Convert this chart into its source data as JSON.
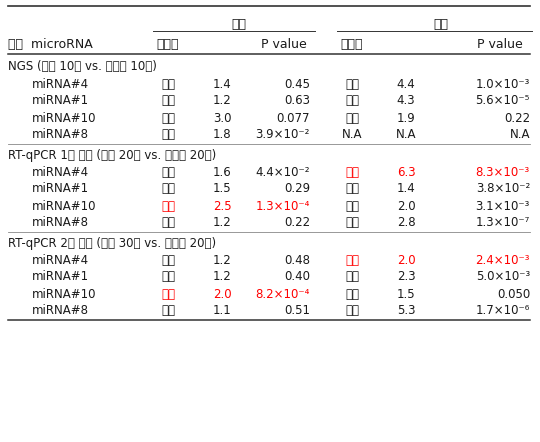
{
  "sections": [
    {
      "section_label": "NGS (피로 10명 vs. 건강인 10명)",
      "rows": [
        {
          "mirna": "miRNA#4",
          "f_dir": "증가",
          "f_dir_red": false,
          "f_val": "1.4",
          "f_val_red": false,
          "f_pval": "0.45",
          "f_pval_red": false,
          "m_dir": "증가",
          "m_dir_red": false,
          "m_val": "4.4",
          "m_val_red": false,
          "m_pval": "1.0×10⁻³",
          "m_pval_red": false
        },
        {
          "mirna": "miRNA#1",
          "f_dir": "증가",
          "f_dir_red": false,
          "f_val": "1.2",
          "f_val_red": false,
          "f_pval": "0.63",
          "f_pval_red": false,
          "m_dir": "감소",
          "m_dir_red": false,
          "m_val": "4.3",
          "m_val_red": false,
          "m_pval": "5.6×10⁻⁵",
          "m_pval_red": false
        },
        {
          "mirna": "miRNA#10",
          "f_dir": "감소",
          "f_dir_red": false,
          "f_val": "3.0",
          "f_val_red": false,
          "f_pval": "0.077",
          "f_pval_red": false,
          "m_dir": "감소",
          "m_dir_red": false,
          "m_val": "1.9",
          "m_val_red": false,
          "m_pval": "0.22",
          "m_pval_red": false
        },
        {
          "mirna": "miRNA#8",
          "f_dir": "증가",
          "f_dir_red": false,
          "f_val": "1.8",
          "f_val_red": false,
          "f_pval": "3.9×10⁻²",
          "f_pval_red": false,
          "m_dir": "N.A",
          "m_dir_red": false,
          "m_val": "N.A",
          "m_val_red": false,
          "m_pval": "N.A",
          "m_pval_red": false
        }
      ]
    },
    {
      "section_label": "RT-qPCR 1차 검증 (피로 20명 vs. 건강인 20명)",
      "rows": [
        {
          "mirna": "miRNA#4",
          "f_dir": "증가",
          "f_dir_red": false,
          "f_val": "1.6",
          "f_val_red": false,
          "f_pval": "4.4×10⁻²",
          "f_pval_red": false,
          "m_dir": "증가",
          "m_dir_red": true,
          "m_val": "6.3",
          "m_val_red": true,
          "m_pval": "8.3×10⁻³",
          "m_pval_red": true
        },
        {
          "mirna": "miRNA#1",
          "f_dir": "감소",
          "f_dir_red": false,
          "f_val": "1.5",
          "f_val_red": false,
          "f_pval": "0.29",
          "f_pval_red": false,
          "m_dir": "감소",
          "m_dir_red": false,
          "m_val": "1.4",
          "m_val_red": false,
          "m_pval": "3.8×10⁻²",
          "m_pval_red": false
        },
        {
          "mirna": "miRNA#10",
          "f_dir": "감소",
          "f_dir_red": true,
          "f_val": "2.5",
          "f_val_red": true,
          "f_pval": "1.3×10⁻⁴",
          "f_pval_red": true,
          "m_dir": "감소",
          "m_dir_red": false,
          "m_val": "2.0",
          "m_val_red": false,
          "m_pval": "3.1×10⁻³",
          "m_pval_red": false
        },
        {
          "mirna": "miRNA#8",
          "f_dir": "증가",
          "f_dir_red": false,
          "f_val": "1.2",
          "f_val_red": false,
          "f_pval": "0.22",
          "f_pval_red": false,
          "m_dir": "감소",
          "m_dir_red": false,
          "m_val": "2.8",
          "m_val_red": false,
          "m_pval": "1.3×10⁻⁷",
          "m_pval_red": false
        }
      ]
    },
    {
      "section_label": "RT-qPCR 2차 검증 (피로 30명 vs. 건강인 20명)",
      "rows": [
        {
          "mirna": "miRNA#4",
          "f_dir": "증가",
          "f_dir_red": false,
          "f_val": "1.2",
          "f_val_red": false,
          "f_pval": "0.48",
          "f_pval_red": false,
          "m_dir": "증가",
          "m_dir_red": true,
          "m_val": "2.0",
          "m_val_red": true,
          "m_pval": "2.4×10⁻³",
          "m_pval_red": true
        },
        {
          "mirna": "miRNA#1",
          "f_dir": "증가",
          "f_dir_red": false,
          "f_val": "1.2",
          "f_val_red": false,
          "f_pval": "0.40",
          "f_pval_red": false,
          "m_dir": "증가",
          "m_dir_red": false,
          "m_val": "2.3",
          "m_val_red": false,
          "m_pval": "5.0×10⁻³",
          "m_pval_red": false
        },
        {
          "mirna": "miRNA#10",
          "f_dir": "감소",
          "f_dir_red": true,
          "f_val": "2.0",
          "f_val_red": true,
          "f_pval": "8.2×10⁻⁴",
          "f_pval_red": true,
          "m_dir": "증가",
          "m_dir_red": false,
          "m_val": "1.5",
          "m_val_red": false,
          "m_pval": "0.050",
          "m_pval_red": false
        },
        {
          "mirna": "miRNA#8",
          "f_dir": "감소",
          "f_dir_red": false,
          "f_val": "1.1",
          "f_val_red": false,
          "f_pval": "0.51",
          "f_pval_red": false,
          "m_dir": "증가",
          "m_dir_red": false,
          "m_val": "5.3",
          "m_val_red": false,
          "m_pval": "1.7×10⁻⁶",
          "m_pval_red": false
        }
      ]
    }
  ],
  "red_color": "#FF0000",
  "black_color": "#1a1a1a",
  "bg_color": "#FFFFFF",
  "header1_label_female": "여성",
  "header1_label_male": "남성",
  "header2_col0": "피로  microRNA",
  "header2_fdir": "증감비",
  "header2_fpval": "P value",
  "header2_mdir": "증감비",
  "header2_mpval": "P value",
  "fs_header": 9.0,
  "fs_data": 8.5,
  "fs_section": 8.5
}
